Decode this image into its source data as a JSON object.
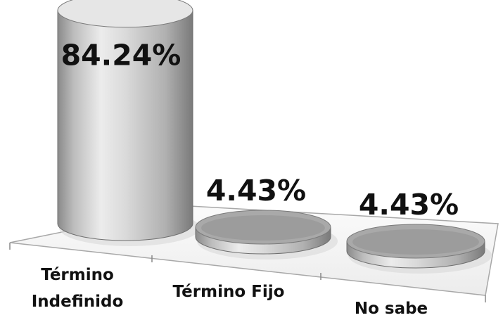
{
  "chart_data": {
    "type": "bar",
    "style": "3d-cylinder",
    "categories": [
      "Término Indefinido",
      "Término Fijo",
      "No sabe"
    ],
    "category_lines": [
      [
        "Término",
        "Indefinido"
      ],
      [
        "Término Fijo"
      ],
      [
        "No sabe"
      ]
    ],
    "values": [
      84.24,
      4.43,
      4.43
    ],
    "data_labels": [
      "84.24%",
      "4.43%",
      "4.43%"
    ],
    "title": "",
    "xlabel": "",
    "ylabel": "",
    "ylim": [
      0,
      100
    ],
    "grid": false,
    "legend": "none",
    "colors": {
      "bar_light": "#f2f2f2",
      "bar_mid": "#c4c4c4",
      "bar_dark": "#7a7a7a",
      "floor": "#f6f6f6",
      "floor_edge": "#9a9a9a",
      "text": "#111111"
    }
  }
}
